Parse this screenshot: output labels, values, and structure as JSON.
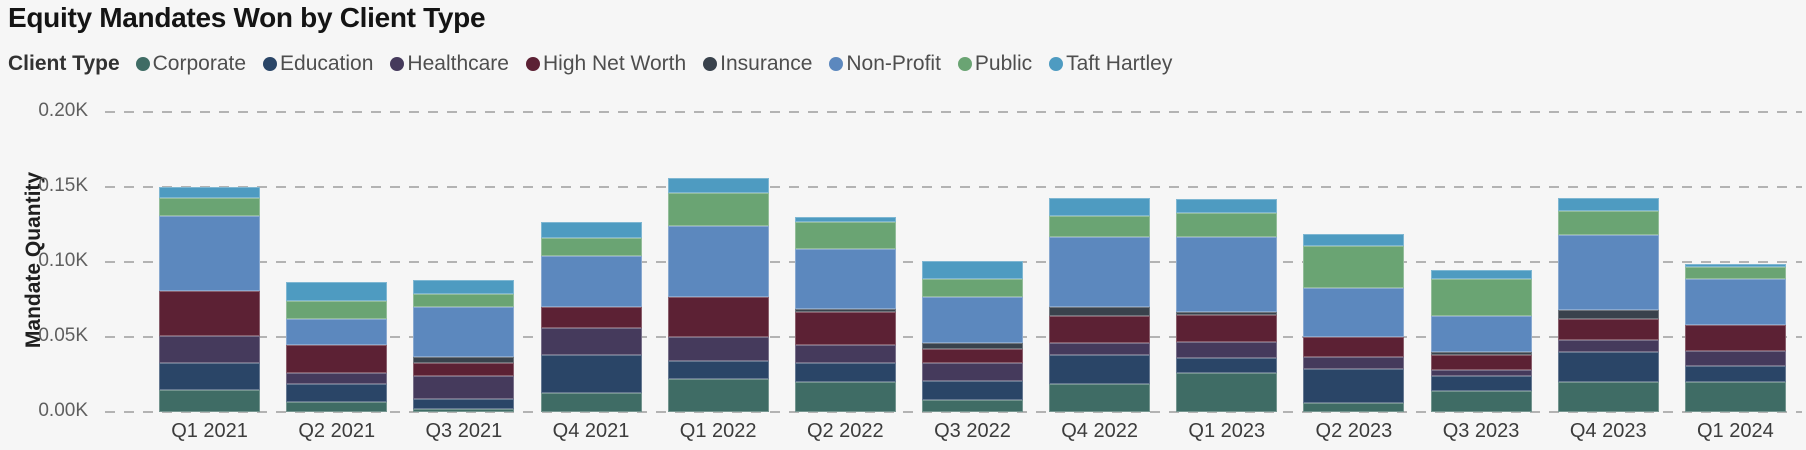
{
  "title": "Equity Mandates Won by Client Type",
  "legend": {
    "label": "Client Type",
    "items": [
      {
        "name": "Corporate",
        "color": "#3F6C65"
      },
      {
        "name": "Education",
        "color": "#2A4567"
      },
      {
        "name": "Healthcare",
        "color": "#453A5C"
      },
      {
        "name": "High Net Worth",
        "color": "#5C2134"
      },
      {
        "name": "Insurance",
        "color": "#39424C"
      },
      {
        "name": "Non-Profit",
        "color": "#5C88BE"
      },
      {
        "name": "Public",
        "color": "#6AA473"
      },
      {
        "name": "Taft Hartley",
        "color": "#4E9BC1"
      }
    ]
  },
  "chart_data": {
    "type": "bar",
    "stacked": true,
    "title": "Equity Mandates Won by Client Type",
    "xlabel": "",
    "ylabel": "Mandate Quantity",
    "ylim": [
      0,
      200
    ],
    "yticks_labels": [
      "0.00K",
      "0.05K",
      "0.10K",
      "0.15K",
      "0.20K"
    ],
    "yticks_values": [
      0,
      50,
      100,
      150,
      200
    ],
    "grid": "horizontal-dashed",
    "legend_position": "top",
    "categories": [
      "Q1 2021",
      "Q2 2021",
      "Q3 2021",
      "Q4 2021",
      "Q1 2022",
      "Q2 2022",
      "Q3 2022",
      "Q4 2022",
      "Q1 2023",
      "Q2 2023",
      "Q3 2023",
      "Q4 2023",
      "Q1 2024"
    ],
    "series": [
      {
        "name": "Corporate",
        "color": "#3F6C65",
        "values": [
          15,
          7,
          2,
          13,
          22,
          20,
          8,
          19,
          26,
          6,
          14,
          20,
          20
        ]
      },
      {
        "name": "Education",
        "color": "#2A4567",
        "values": [
          18,
          12,
          7,
          25,
          12,
          13,
          13,
          19,
          10,
          23,
          10,
          20,
          11
        ]
      },
      {
        "name": "Healthcare",
        "color": "#453A5C",
        "values": [
          18,
          7,
          15,
          18,
          16,
          12,
          12,
          8,
          11,
          8,
          4,
          8,
          10
        ]
      },
      {
        "name": "High Net Worth",
        "color": "#5C2134",
        "values": [
          30,
          19,
          9,
          14,
          27,
          22,
          9,
          18,
          18,
          13,
          10,
          14,
          17
        ]
      },
      {
        "name": "Insurance",
        "color": "#39424C",
        "values": [
          0,
          0,
          4,
          0,
          0,
          2,
          4,
          6,
          2,
          0,
          2,
          6,
          0
        ]
      },
      {
        "name": "Non-Profit",
        "color": "#5C88BE",
        "values": [
          50,
          17,
          33,
          34,
          47,
          40,
          31,
          47,
          50,
          33,
          24,
          50,
          31
        ]
      },
      {
        "name": "Public",
        "color": "#6AA473",
        "values": [
          12,
          12,
          9,
          12,
          22,
          18,
          12,
          14,
          16,
          28,
          25,
          16,
          8
        ]
      },
      {
        "name": "Taft Hartley",
        "color": "#4E9BC1",
        "values": [
          7,
          13,
          9,
          11,
          10,
          3,
          12,
          12,
          9,
          8,
          6,
          9,
          2
        ]
      }
    ],
    "totals": [
      150,
      87,
      88,
      127,
      156,
      130,
      101,
      143,
      142,
      119,
      95,
      143,
      99
    ]
  }
}
